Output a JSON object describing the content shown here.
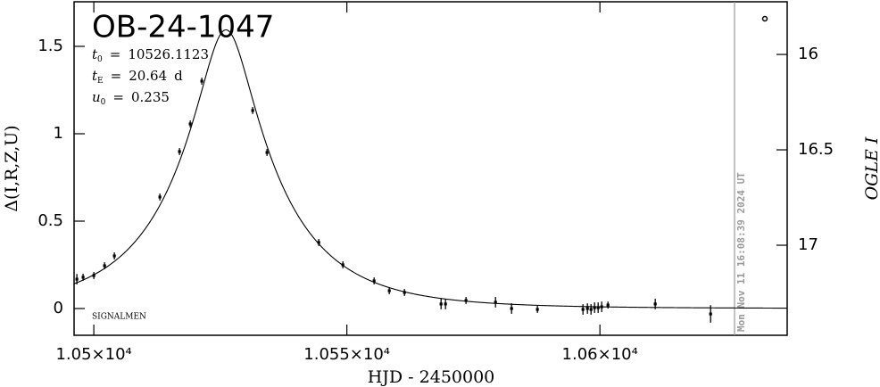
{
  "chart_data": {
    "type": "scatter",
    "title": "OB-24-1047",
    "xlabel": "HJD - 2450000",
    "ylabel": "Δ(I,R,Z,U)",
    "y2label": "OGLE I",
    "footnote": "SIGNALMEN",
    "color": "#000000",
    "x": [
      10496.65,
      10497.88,
      10500.0,
      10502.12,
      10504.06,
      10513.05,
      10516.93,
      10519.05,
      10521.34,
      10531.39,
      10534.22,
      10544.44,
      10549.21,
      10555.38,
      10558.38,
      10561.38,
      10568.61,
      10569.49,
      10573.54,
      10579.37,
      10582.54,
      10587.65,
      10596.65,
      10597.53,
      10598.24,
      10598.94,
      10599.65,
      10600.35,
      10601.59,
      10610.93,
      10621.87
    ],
    "values": [
      0.168,
      0.179,
      0.189,
      0.245,
      0.301,
      0.638,
      0.898,
      1.056,
      1.301,
      1.133,
      0.893,
      0.378,
      0.25,
      0.158,
      0.102,
      0.092,
      0.026,
      0.026,
      0.046,
      0.036,
      0.0,
      -0.005,
      -0.005,
      0.0,
      -0.005,
      0.005,
      0.005,
      0.01,
      0.02,
      0.026,
      -0.031
    ],
    "errors": [
      0.03,
      0.02,
      0.02,
      0.02,
      0.02,
      0.02,
      0.02,
      0.02,
      0.02,
      0.02,
      0.02,
      0.02,
      0.02,
      0.02,
      0.02,
      0.02,
      0.03,
      0.03,
      0.02,
      0.03,
      0.03,
      0.02,
      0.03,
      0.03,
      0.03,
      0.03,
      0.03,
      0.03,
      0.02,
      0.03,
      0.05
    ],
    "model": {
      "separator": "=",
      "parameters": [
        {
          "symbol": "t",
          "subscript": "0",
          "value": 10526.1123
        },
        {
          "symbol": "t",
          "subscript": "E",
          "value": 20.64,
          "unit": "d"
        },
        {
          "symbol": "u",
          "subscript": "0",
          "value": 0.235
        }
      ]
    },
    "now_line": {
      "x": 10626.6,
      "label": "Mon Nov 11 16:08:39 2024 UT",
      "color": "#999999"
    },
    "xlim": [
      10496.1,
      10637.0
    ],
    "xticks": [
      {
        "value": 10500,
        "label": "1.05×10⁴"
      },
      {
        "value": 10550,
        "label": "1.055×10⁴"
      },
      {
        "value": 10600,
        "label": "1.06×10⁴"
      }
    ],
    "ylim": [
      -0.153,
      1.755
    ],
    "yticks": [
      0,
      0.5,
      1,
      1.5
    ],
    "y2lim": [
      17.472,
      15.724
    ],
    "y2ticks": [
      16,
      16.5,
      17
    ]
  }
}
